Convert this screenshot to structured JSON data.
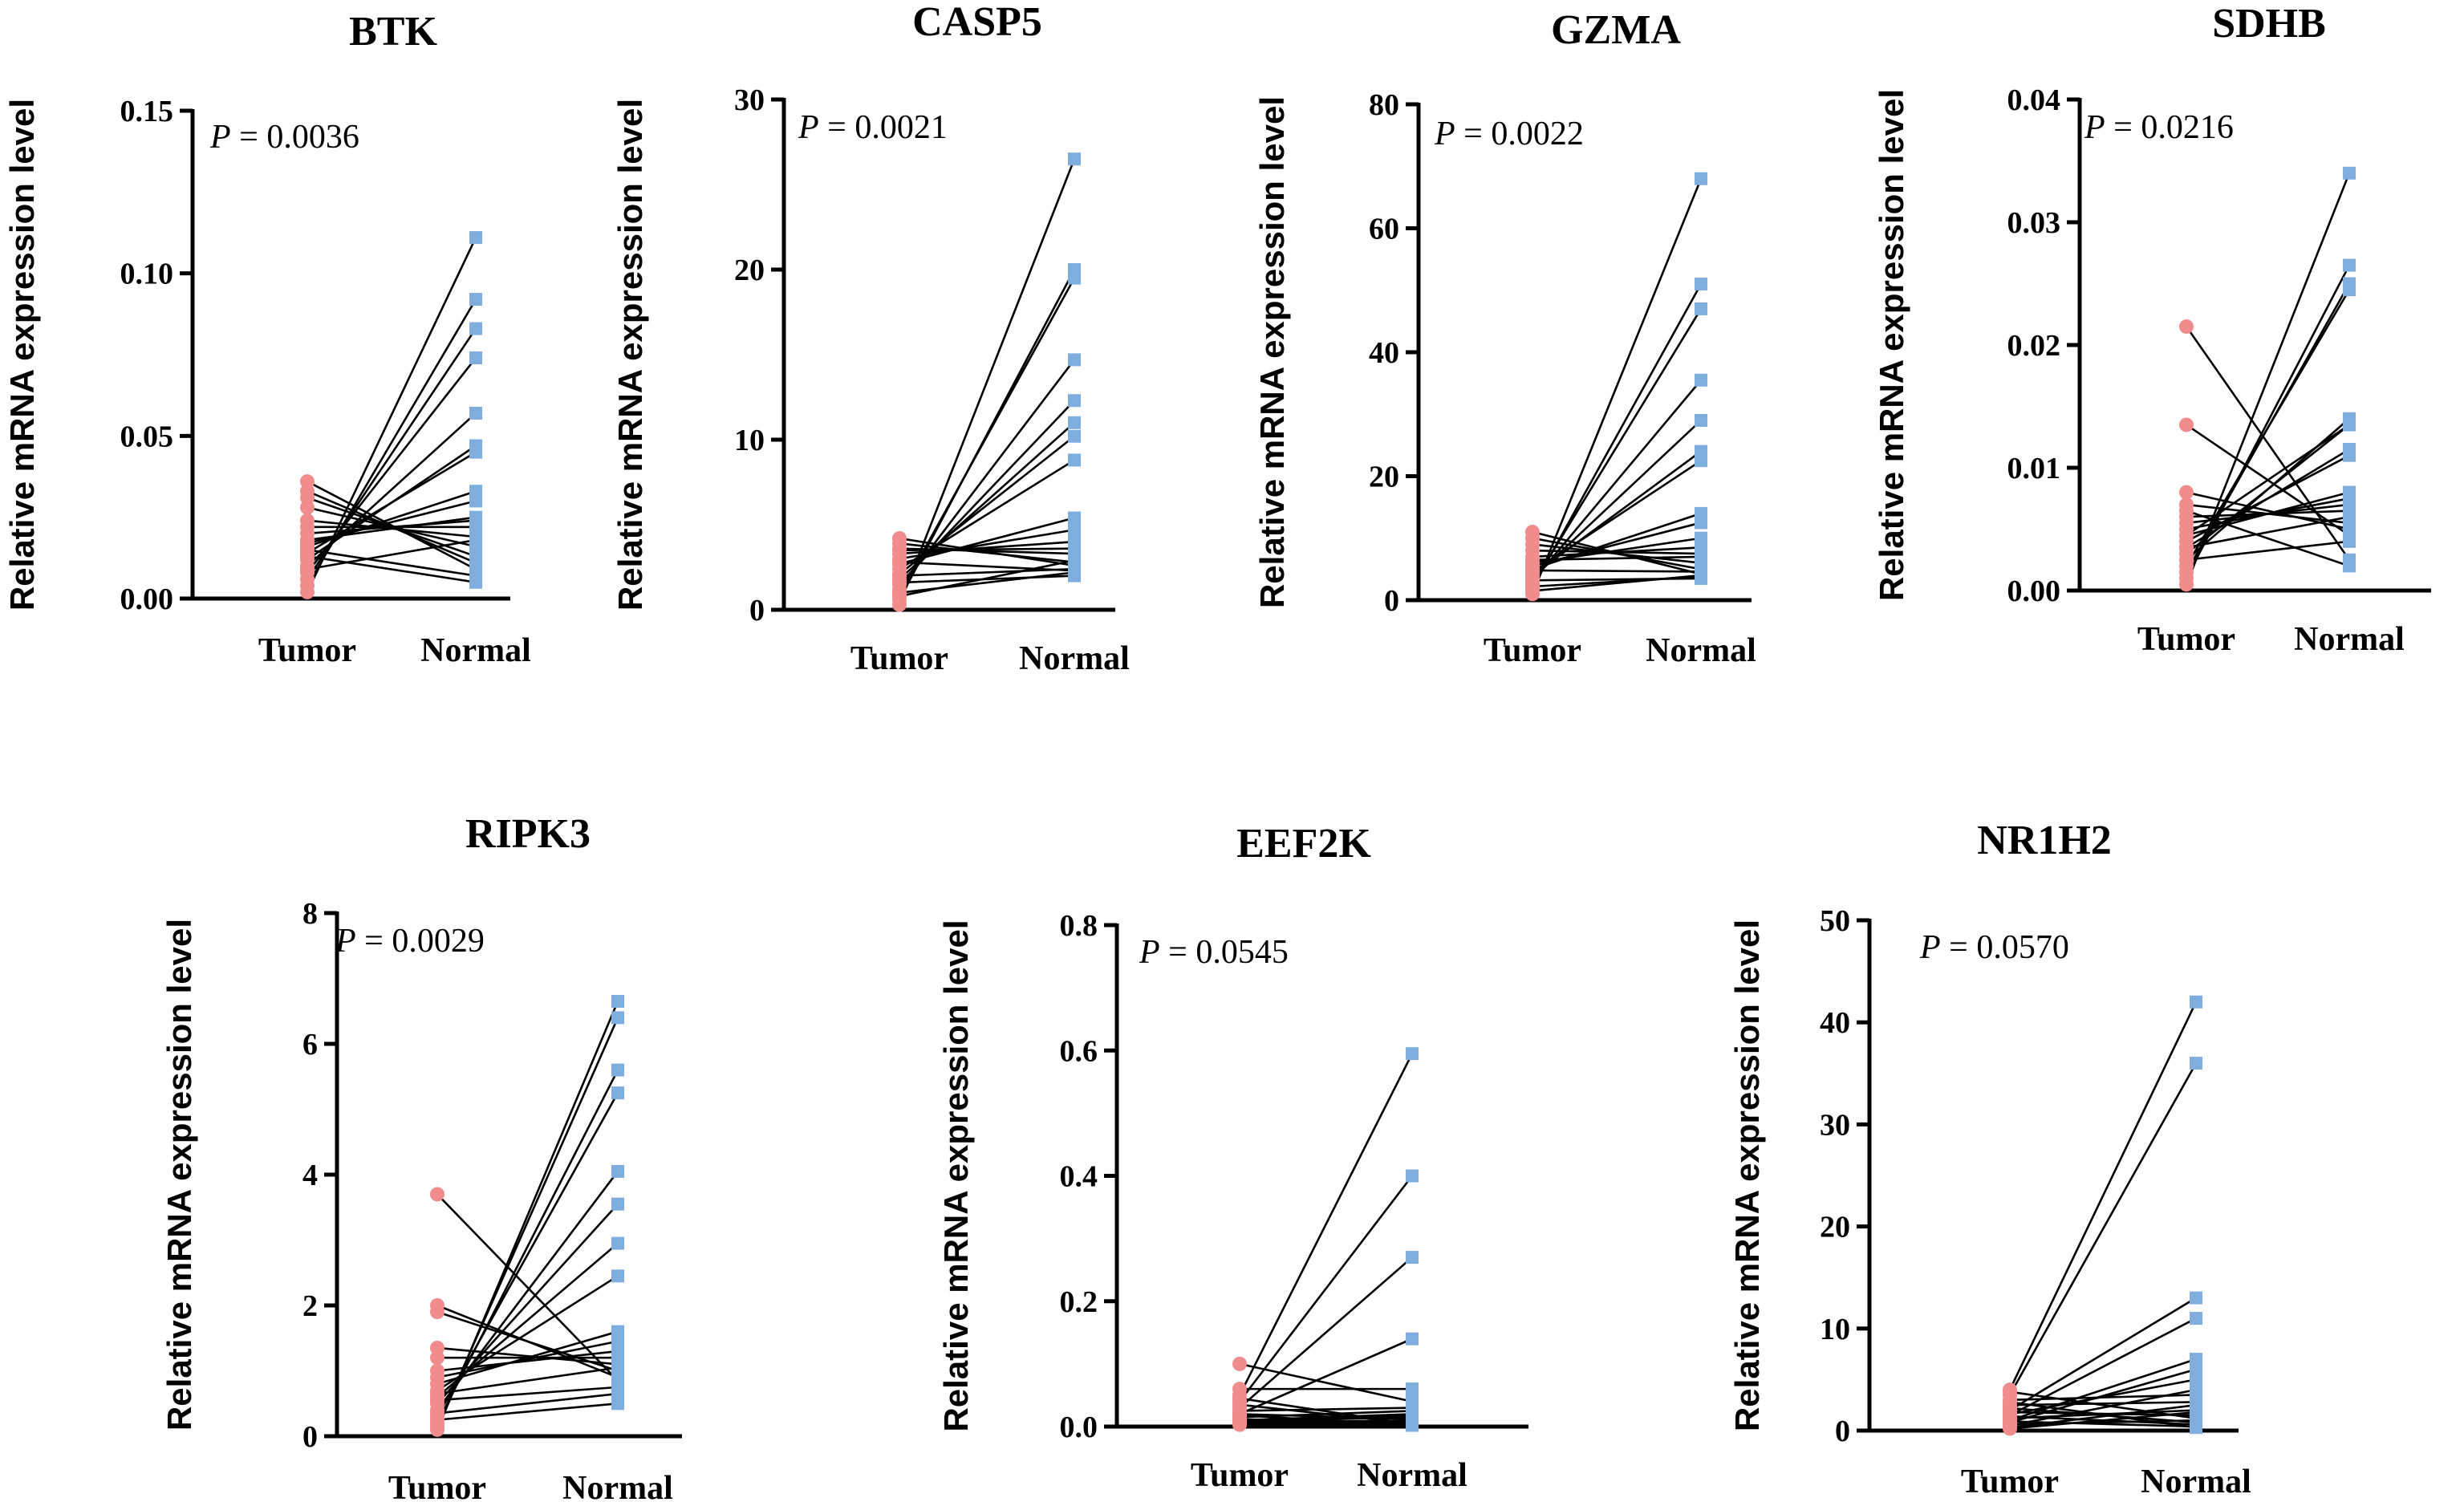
{
  "legend": {
    "group1": "Tumor",
    "group2": "Normal"
  },
  "colors": {
    "tumor": "#f08c8c",
    "normal": "#7fadde",
    "line": "#000000"
  },
  "p_label": "P",
  "chart_data": [
    {
      "type": "paired-dot",
      "title": "BTK",
      "ylabel": "Relative mRNA expression level",
      "categories": [
        "Tumor",
        "Normal"
      ],
      "ylim": [
        0,
        0.15
      ],
      "yticks": [
        "0.00",
        "0.05",
        "0.10",
        "0.15"
      ],
      "p_value": "0.0036",
      "pairs": [
        [
          0.002,
          0.111
        ],
        [
          0.004,
          0.092
        ],
        [
          0.006,
          0.083
        ],
        [
          0.008,
          0.074
        ],
        [
          0.01,
          0.057
        ],
        [
          0.012,
          0.047
        ],
        [
          0.014,
          0.045
        ],
        [
          0.016,
          0.033
        ],
        [
          0.017,
          0.03
        ],
        [
          0.018,
          0.025
        ],
        [
          0.02,
          0.024
        ],
        [
          0.022,
          0.022
        ],
        [
          0.024,
          0.019
        ],
        [
          0.028,
          0.016
        ],
        [
          0.031,
          0.013
        ],
        [
          0.033,
          0.011
        ],
        [
          0.036,
          0.009
        ],
        [
          0.015,
          0.007
        ],
        [
          0.013,
          0.005
        ],
        [
          0.009,
          0.018
        ]
      ]
    },
    {
      "type": "paired-dot",
      "title": "CASP5",
      "ylabel": "Relative mRNA expression level",
      "categories": [
        "Tumor",
        "Normal"
      ],
      "ylim": [
        0,
        30
      ],
      "yticks": [
        "0",
        "10",
        "20",
        "30"
      ],
      "p_value": "0.0021",
      "pairs": [
        [
          0.3,
          26.5
        ],
        [
          0.6,
          20.0
        ],
        [
          0.9,
          19.5
        ],
        [
          1.2,
          14.7
        ],
        [
          1.5,
          12.3
        ],
        [
          1.8,
          11.0
        ],
        [
          2.1,
          10.2
        ],
        [
          2.4,
          8.8
        ],
        [
          2.7,
          5.4
        ],
        [
          3.0,
          4.7
        ],
        [
          3.3,
          4.0
        ],
        [
          3.6,
          3.3
        ],
        [
          3.9,
          2.8
        ],
        [
          4.2,
          2.6
        ],
        [
          2.0,
          2.4
        ],
        [
          1.0,
          2.2
        ],
        [
          1.6,
          2.0
        ],
        [
          2.8,
          2.3
        ],
        [
          0.8,
          2.9
        ],
        [
          3.5,
          3.6
        ]
      ]
    },
    {
      "type": "paired-dot",
      "title": "GZMA",
      "ylabel": "Relative mRNA expression level",
      "categories": [
        "Tumor",
        "Normal"
      ],
      "ylim": [
        0,
        80
      ],
      "yticks": [
        "0",
        "20",
        "40",
        "60",
        "80"
      ],
      "p_value": "0.0022",
      "pairs": [
        [
          1,
          68
        ],
        [
          2,
          51
        ],
        [
          2.5,
          47
        ],
        [
          3,
          35.5
        ],
        [
          3.5,
          29
        ],
        [
          4,
          24
        ],
        [
          4.5,
          22.5
        ],
        [
          5,
          14
        ],
        [
          5.5,
          12.5
        ],
        [
          6,
          10
        ],
        [
          7,
          8.5
        ],
        [
          8,
          7.5
        ],
        [
          9,
          6
        ],
        [
          10,
          5
        ],
        [
          11,
          4.2
        ],
        [
          3.2,
          3.5
        ],
        [
          1.5,
          4
        ],
        [
          2.2,
          3.8
        ],
        [
          4.8,
          4.6
        ],
        [
          6.5,
          7
        ]
      ]
    },
    {
      "type": "paired-dot",
      "title": "SDHB",
      "ylabel": "Relative mRNA expression level",
      "categories": [
        "Tumor",
        "Normal"
      ],
      "ylim": [
        0,
        0.04
      ],
      "yticks": [
        "0.00",
        "0.01",
        "0.02",
        "0.03",
        "0.04"
      ],
      "p_value": "0.0216",
      "pairs": [
        [
          0.0005,
          0.034
        ],
        [
          0.001,
          0.0265
        ],
        [
          0.0015,
          0.025
        ],
        [
          0.002,
          0.0245
        ],
        [
          0.0025,
          0.014
        ],
        [
          0.003,
          0.0135
        ],
        [
          0.0035,
          0.0115
        ],
        [
          0.004,
          0.011
        ],
        [
          0.0045,
          0.008
        ],
        [
          0.005,
          0.0075
        ],
        [
          0.0055,
          0.007
        ],
        [
          0.006,
          0.0065
        ],
        [
          0.007,
          0.0055
        ],
        [
          0.008,
          0.005
        ],
        [
          0.0135,
          0.0045
        ],
        [
          0.0215,
          0.0025
        ],
        [
          0.0065,
          0.002
        ],
        [
          0.0025,
          0.004
        ],
        [
          0.0045,
          0.0135
        ],
        [
          0.0035,
          0.006
        ]
      ]
    },
    {
      "type": "paired-dot",
      "title": "RIPK3",
      "ylabel": "Relative mRNA expression level",
      "categories": [
        "Tumor",
        "Normal"
      ],
      "ylim": [
        0,
        8
      ],
      "yticks": [
        "0",
        "2",
        "4",
        "6",
        "8"
      ],
      "p_value": "0.0029",
      "pairs": [
        [
          0.1,
          6.65
        ],
        [
          0.15,
          6.4
        ],
        [
          0.2,
          5.6
        ],
        [
          0.3,
          5.25
        ],
        [
          0.4,
          4.05
        ],
        [
          0.5,
          3.55
        ],
        [
          0.6,
          2.95
        ],
        [
          0.7,
          2.45
        ],
        [
          0.8,
          1.6
        ],
        [
          0.9,
          1.45
        ],
        [
          1.0,
          1.3
        ],
        [
          1.2,
          1.2
        ],
        [
          1.35,
          1.1
        ],
        [
          1.9,
          1.0
        ],
        [
          2.0,
          0.9
        ],
        [
          3.7,
          0.85
        ],
        [
          0.55,
          0.75
        ],
        [
          0.35,
          0.65
        ],
        [
          0.25,
          0.5
        ],
        [
          0.65,
          1.05
        ]
      ]
    },
    {
      "type": "paired-dot",
      "title": "EEF2K",
      "ylabel": "Relative mRNA expression level",
      "categories": [
        "Tumor",
        "Normal"
      ],
      "ylim": [
        0,
        0.8
      ],
      "yticks": [
        "0.0",
        "0.2",
        "0.4",
        "0.6",
        "0.8"
      ],
      "p_value": "0.0545",
      "pairs": [
        [
          0.05,
          0.595
        ],
        [
          0.04,
          0.4
        ],
        [
          0.03,
          0.27
        ],
        [
          0.02,
          0.14
        ],
        [
          0.06,
          0.06
        ],
        [
          0.1,
          0.04
        ],
        [
          0.025,
          0.03
        ],
        [
          0.015,
          0.025
        ],
        [
          0.01,
          0.02
        ],
        [
          0.008,
          0.015
        ],
        [
          0.006,
          0.01
        ],
        [
          0.004,
          0.008
        ],
        [
          0.003,
          0.006
        ],
        [
          0.035,
          0.005
        ],
        [
          0.045,
          0.004
        ],
        [
          0.012,
          0.003
        ],
        [
          0.018,
          0.002
        ],
        [
          0.02,
          0.012
        ],
        [
          0.007,
          0.018
        ],
        [
          0.009,
          0.002
        ]
      ]
    },
    {
      "type": "paired-dot",
      "title": "NR1H2",
      "ylabel": "Relative mRNA expression level",
      "categories": [
        "Tumor",
        "Normal"
      ],
      "ylim": [
        0,
        50
      ],
      "yticks": [
        "0",
        "10",
        "20",
        "30",
        "40",
        "50"
      ],
      "p_value": "0.0570",
      "pairs": [
        [
          4,
          42
        ],
        [
          3.5,
          36
        ],
        [
          2,
          13
        ],
        [
          1.5,
          11
        ],
        [
          1,
          7
        ],
        [
          0.8,
          6
        ],
        [
          0.5,
          4
        ],
        [
          3,
          3.5
        ],
        [
          2.5,
          2.8
        ],
        [
          0.3,
          2.5
        ],
        [
          1.2,
          2
        ],
        [
          1.8,
          1.5
        ],
        [
          3.8,
          1.2
        ],
        [
          0.6,
          1
        ],
        [
          2.2,
          0.8
        ],
        [
          1.4,
          0.6
        ],
        [
          0.9,
          0.4
        ],
        [
          2.8,
          0.3
        ],
        [
          0.2,
          1.8
        ],
        [
          1.6,
          5
        ]
      ]
    }
  ]
}
